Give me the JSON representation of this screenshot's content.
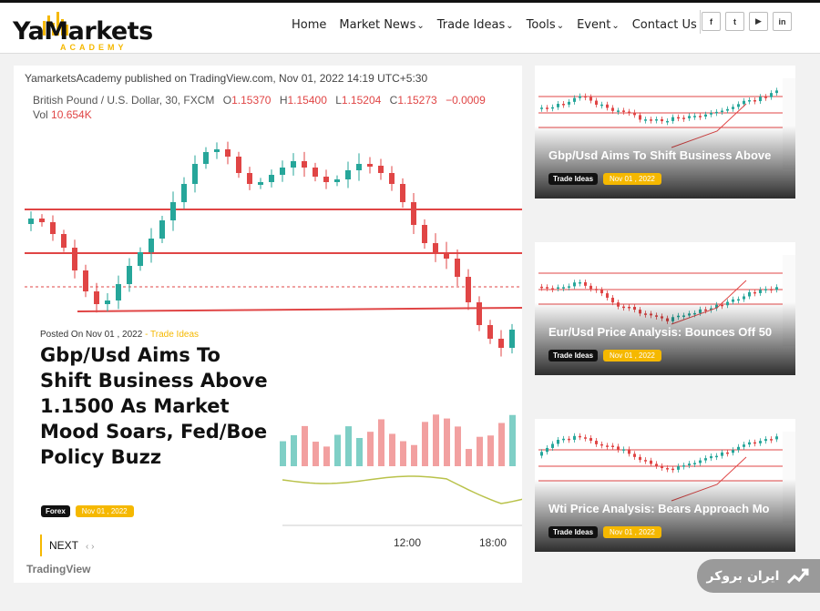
{
  "brand": {
    "name": "YaMarkets",
    "sub": "ACADEMY"
  },
  "nav": [
    {
      "label": "Home",
      "has_dropdown": false
    },
    {
      "label": "Market News",
      "has_dropdown": true
    },
    {
      "label": "Trade Ideas",
      "has_dropdown": true
    },
    {
      "label": "Tools",
      "has_dropdown": true
    },
    {
      "label": "Event",
      "has_dropdown": true
    },
    {
      "label": "Contact Us",
      "has_dropdown": false
    }
  ],
  "social": [
    {
      "icon": "facebook-icon",
      "glyph": "f"
    },
    {
      "icon": "twitter-icon",
      "glyph": "t"
    },
    {
      "icon": "youtube-icon",
      "glyph": "▶"
    },
    {
      "icon": "linkedin-icon",
      "glyph": "in"
    }
  ],
  "hero": {
    "tv_header": "YamarketsAcademy published on TradingView.com, Nov 01, 2022 14:19 UTC+5:30",
    "symbol": "British Pound / U.S. Dollar, 30, FXCM",
    "ohlc": {
      "o_label": "O",
      "o": "1.15370",
      "h_label": "H",
      "h": "1.15400",
      "l_label": "L",
      "l": "1.15204",
      "c_label": "C",
      "c": "1.15273",
      "change": "−0.0009"
    },
    "volume_label": "Vol",
    "volume": "10.654K",
    "time_labels": [
      "12:00",
      "18:00"
    ],
    "tv_brand": "TradingView",
    "posted_prefix": "Posted On Nov 01 , 2022",
    "category": "- Trade Ideas",
    "title": "Gbp/Usd Aims To Shift Business Above 1.1500 As Market Mood Soars, Fed/Boe Policy Buzz",
    "tag": "Forex",
    "date": "Nov 01 , 2022",
    "next_label": "NEXT",
    "next_arrows": "‹ ›"
  },
  "side_cards": [
    {
      "title": "Gbp/Usd Aims To Shift Business Above",
      "tag": "Trade Ideas",
      "date": "Nov 01 , 2022"
    },
    {
      "title": "Eur/Usd Price Analysis: Bounces Off 50",
      "tag": "Trade Ideas",
      "date": "Nov 01 , 2022"
    },
    {
      "title": "Wti Price Analysis: Bears Approach Mo",
      "tag": "Trade Ideas",
      "date": "Nov 01 , 2022"
    }
  ],
  "broker_widget": {
    "label": "ایران بروکر",
    "icon": "chart-growth-icon"
  },
  "colors": {
    "accent": "#f5b800",
    "bull": "#26a69a",
    "bear": "#e04545",
    "dark": "#111111"
  }
}
